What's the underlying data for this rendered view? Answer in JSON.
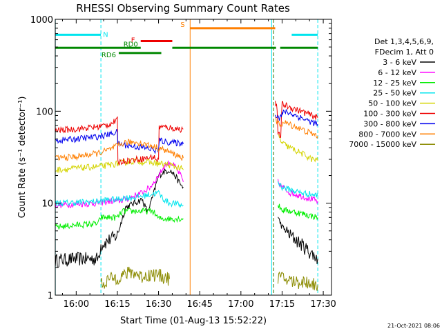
{
  "chart_data": {
    "type": "line",
    "title": "RHESSI Observing Summary Count Rates",
    "xlabel": "Start Time (01-Aug-13 15:52:22)",
    "ylabel": "Count Rate (s⁻¹ detector⁻¹)",
    "y_scale": "log",
    "ylim": [
      1,
      1000
    ],
    "xlim_minutes": [
      -7.63,
      93.0
    ],
    "x_ticks": [
      {
        "minute": 0,
        "label": "16:00"
      },
      {
        "minute": 15,
        "label": "16:15"
      },
      {
        "minute": 30,
        "label": "16:30"
      },
      {
        "minute": 45,
        "label": "16:45"
      },
      {
        "minute": 60,
        "label": "17:00"
      },
      {
        "minute": 75,
        "label": "17:15"
      },
      {
        "minute": 90,
        "label": "17:30"
      }
    ],
    "y_ticks": [
      {
        "value": 1,
        "label": "1"
      },
      {
        "value": 10,
        "label": "10"
      },
      {
        "value": 100,
        "label": "100"
      },
      {
        "value": 1000,
        "label": "1000"
      }
    ],
    "legend_title": [
      "Det 1,3,4,5,6,9,",
      "FDecim 1, Att 0"
    ],
    "legend_position": "right",
    "timestamp": "21-Oct-2021 08:06",
    "flags": [
      {
        "label": "N",
        "color": "#00e5ee",
        "value": 680,
        "segments": [
          [
            -7.6,
            9.0
          ],
          [
            78.5,
            88.0
          ]
        ]
      },
      {
        "label": "S",
        "color": "#ff7f00",
        "value": 800,
        "segments": [
          [
            41.5,
            72.5
          ]
        ]
      },
      {
        "label": "F",
        "color": "#ee0000",
        "value": 580,
        "segments": [
          [
            23.5,
            35.0
          ]
        ]
      },
      {
        "label": "RD0",
        "color": "#008800",
        "value": 490,
        "segments": [
          [
            -7.6,
            23.5
          ],
          [
            35.0,
            72.8
          ],
          [
            74.3,
            88.0
          ]
        ]
      },
      {
        "label": "RD6",
        "color": "#008800",
        "value": 430,
        "segments": [
          [
            15.5,
            31.0
          ]
        ]
      }
    ],
    "vertical_markers": [
      {
        "minute": 9.0,
        "color": "#00e5ee",
        "style": "dashed"
      },
      {
        "minute": 72.0,
        "color": "#00e5ee",
        "style": "dashed"
      },
      {
        "minute": 88.0,
        "color": "#00e5ee",
        "style": "dashed"
      },
      {
        "minute": 41.5,
        "color": "#ff7f00",
        "style": "solid"
      },
      {
        "minute": 71.8,
        "color": "#ff7f00",
        "style": "dashed"
      },
      {
        "minute": -7.6,
        "color": "#00e5ee",
        "style": "solid"
      },
      {
        "minute": 71.2,
        "color": "#00e5ee",
        "style": "solid"
      }
    ],
    "series": [
      {
        "name": "3 - 6 keV",
        "color": "#000000",
        "segments": [
          [
            [
              -7.6,
              2.4
            ],
            [
              0,
              2.5
            ],
            [
              8,
              2.5
            ],
            [
              9,
              3.5
            ],
            [
              12,
              4
            ],
            [
              15,
              4.5
            ],
            [
              18,
              9
            ],
            [
              21,
              10
            ],
            [
              24,
              11
            ],
            [
              26,
              8
            ],
            [
              28,
              12
            ],
            [
              30,
              20
            ],
            [
              32,
              22
            ],
            [
              34,
              23
            ],
            [
              36,
              20
            ],
            [
              38,
              16
            ],
            [
              39,
              15
            ]
          ],
          [
            [
              73.5,
              7
            ],
            [
              75,
              5.5
            ],
            [
              78,
              4.5
            ],
            [
              82,
              3.6
            ],
            [
              86,
              2.8
            ],
            [
              88,
              2.5
            ]
          ]
        ]
      },
      {
        "name": "6 - 12 keV",
        "color": "#ff00ff",
        "segments": [
          [
            [
              -7.6,
              9.5
            ],
            [
              0,
              9.8
            ],
            [
              8,
              10
            ],
            [
              12,
              10.5
            ],
            [
              15,
              10.5
            ],
            [
              18,
              11
            ],
            [
              21,
              12
            ],
            [
              24,
              13
            ],
            [
              27,
              15
            ],
            [
              30,
              20
            ],
            [
              32,
              25
            ],
            [
              34,
              28
            ],
            [
              36,
              25
            ],
            [
              38,
              20
            ],
            [
              39,
              17
            ]
          ],
          [
            [
              73.5,
              17
            ],
            [
              75,
              15
            ],
            [
              78,
              13
            ],
            [
              82,
              12
            ],
            [
              86,
              11
            ],
            [
              88,
              10.5
            ]
          ]
        ]
      },
      {
        "name": "12 - 25 keV",
        "color": "#00ee00",
        "segments": [
          [
            [
              -7.6,
              5.5
            ],
            [
              0,
              5.8
            ],
            [
              8,
              6
            ],
            [
              9,
              7
            ],
            [
              15,
              7
            ],
            [
              17,
              8.2
            ],
            [
              28,
              8.2
            ],
            [
              30,
              6.8
            ],
            [
              39,
              6.8
            ]
          ],
          [
            [
              73.5,
              9.5
            ],
            [
              75,
              8.5
            ],
            [
              80,
              8
            ],
            [
              84,
              7.5
            ],
            [
              88,
              7
            ]
          ]
        ]
      },
      {
        "name": "25 - 50 keV",
        "color": "#00e5ee",
        "segments": [
          [
            [
              -7.6,
              10
            ],
            [
              0,
              10.2
            ],
            [
              8,
              10.5
            ],
            [
              12,
              11
            ],
            [
              15,
              11
            ],
            [
              17,
              11.5
            ],
            [
              21,
              11.5
            ],
            [
              24,
              12
            ],
            [
              27,
              12.5
            ],
            [
              30,
              13
            ],
            [
              32,
              11
            ],
            [
              34,
              10
            ],
            [
              36,
              10
            ],
            [
              38,
              9.5
            ],
            [
              39,
              9.5
            ]
          ],
          [
            [
              73.5,
              17
            ],
            [
              75,
              15
            ],
            [
              78,
              14
            ],
            [
              82,
              13
            ],
            [
              86,
              12.5
            ],
            [
              88,
              12
            ]
          ]
        ]
      },
      {
        "name": "50 - 100 keV",
        "color": "#d4d400",
        "segments": [
          [
            [
              -7.6,
              23
            ],
            [
              0,
              24
            ],
            [
              8,
              25
            ],
            [
              12,
              26
            ],
            [
              15,
              27
            ],
            [
              18,
              28
            ],
            [
              22,
              29
            ],
            [
              26,
              28
            ],
            [
              30,
              27
            ],
            [
              34,
              26
            ],
            [
              38,
              24
            ],
            [
              39,
              23
            ]
          ],
          [
            [
              73.5,
              55
            ],
            [
              75,
              45
            ],
            [
              78,
              40
            ],
            [
              82,
              35
            ],
            [
              86,
              30
            ],
            [
              88,
              29
            ]
          ]
        ]
      },
      {
        "name": "100 - 300 keV",
        "color": "#ee0000",
        "segments": [
          [
            [
              -7.6,
              62
            ],
            [
              0,
              64
            ],
            [
              8,
              68
            ],
            [
              12,
              72
            ],
            [
              15,
              80
            ],
            [
              15.2,
              28
            ],
            [
              18,
              29
            ],
            [
              22,
              30
            ],
            [
              26,
              31
            ],
            [
              28,
              32
            ],
            [
              30,
              29
            ],
            [
              30.2,
              68
            ],
            [
              34,
              66
            ],
            [
              38,
              64
            ],
            [
              39,
              64
            ]
          ],
          [
            [
              72.5,
              130
            ],
            [
              73.2,
              105
            ],
            [
              73.5,
              55
            ],
            [
              74.5,
              55
            ],
            [
              75,
              120
            ],
            [
              78,
              110
            ],
            [
              82,
              100
            ],
            [
              86,
              90
            ],
            [
              88,
              85
            ]
          ]
        ]
      },
      {
        "name": "300 - 800 keV",
        "color": "#0000ee",
        "segments": [
          [
            [
              -7.6,
              48
            ],
            [
              0,
              50
            ],
            [
              8,
              53
            ],
            [
              12,
              56
            ],
            [
              15,
              60
            ],
            [
              15.2,
              44
            ],
            [
              20,
              42
            ],
            [
              25,
              40
            ],
            [
              30,
              37
            ],
            [
              30.2,
              48
            ],
            [
              34,
              46
            ],
            [
              38,
              45
            ],
            [
              39,
              44
            ]
          ],
          [
            [
              72.5,
              95
            ],
            [
              73.2,
              90
            ],
            [
              74,
              85
            ],
            [
              76,
              100
            ],
            [
              80,
              90
            ],
            [
              84,
              80
            ],
            [
              88,
              72
            ]
          ]
        ]
      },
      {
        "name": "800 - 7000 keV",
        "color": "#ff7f00",
        "segments": [
          [
            [
              -7.6,
              31
            ],
            [
              0,
              32
            ],
            [
              8,
              35
            ],
            [
              12,
              38
            ],
            [
              15,
              42
            ],
            [
              18,
              46
            ],
            [
              22,
              46
            ],
            [
              26,
              43
            ],
            [
              30,
              40
            ],
            [
              34,
              36
            ],
            [
              38,
              32
            ],
            [
              39,
              31
            ]
          ],
          [
            [
              72.5,
              80
            ],
            [
              74,
              72
            ],
            [
              76,
              75
            ],
            [
              80,
              68
            ],
            [
              84,
              60
            ],
            [
              88,
              54
            ]
          ]
        ]
      },
      {
        "name": "7000 - 15000 keV",
        "color": "#8b8b00",
        "segments": [
          [
            [
              9,
              1.3
            ],
            [
              12,
              1.5
            ],
            [
              16,
              1.6
            ],
            [
              20,
              1.8
            ],
            [
              24,
              1.6
            ],
            [
              28,
              1.7
            ],
            [
              32,
              1.6
            ],
            [
              34,
              1.5
            ]
          ],
          [
            [
              73.5,
              1.6
            ],
            [
              76,
              1.5
            ],
            [
              80,
              1.4
            ],
            [
              84,
              1.4
            ],
            [
              88,
              1.3
            ]
          ]
        ]
      }
    ]
  }
}
